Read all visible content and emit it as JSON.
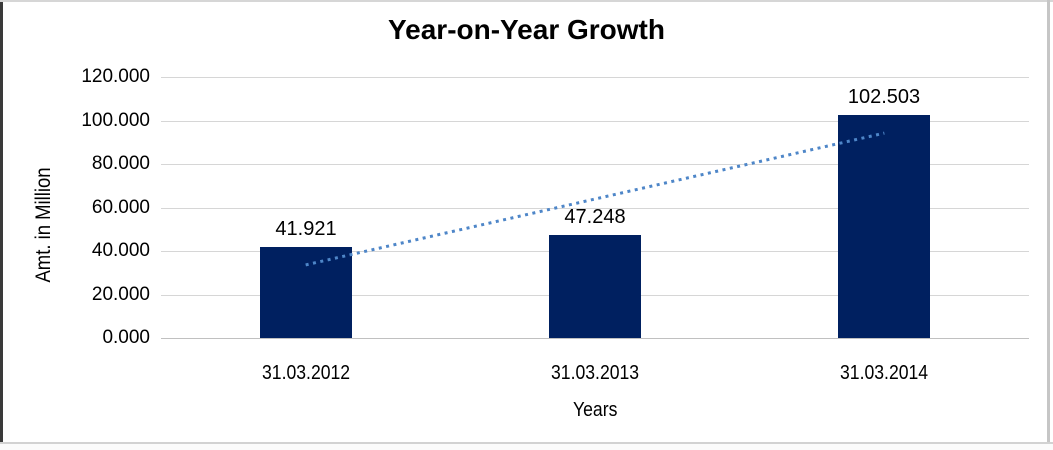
{
  "chart_data": {
    "type": "bar",
    "title": "Year-on-Year Growth",
    "categories": [
      "31.03.2012",
      "31.03.2013",
      "31.03.2014"
    ],
    "values": [
      41.921,
      47.248,
      102.503
    ],
    "data_labels": [
      "41.921",
      "47.248",
      "102.503"
    ],
    "xlabel": "Years",
    "ylabel": "Amt. in Million",
    "ylim": [
      0,
      120
    ],
    "yticks": [
      {
        "value": 0,
        "label": "0.000"
      },
      {
        "value": 20,
        "label": "20.000"
      },
      {
        "value": 40,
        "label": "40.000"
      },
      {
        "value": 60,
        "label": "60.000"
      },
      {
        "value": 80,
        "label": "80.000"
      },
      {
        "value": 100,
        "label": "100.000"
      },
      {
        "value": 120,
        "label": "120.000"
      }
    ],
    "grid": true,
    "legend": false,
    "trendline": {
      "type": "linear",
      "style": "dotted",
      "start_value": 33.6,
      "end_value": 94.2
    },
    "colors": {
      "bar": "#002060",
      "trendline": "#4e86c8",
      "gridline": "#d6d6d6",
      "axis_line": "#c0c0c0",
      "text": "#000000"
    }
  }
}
